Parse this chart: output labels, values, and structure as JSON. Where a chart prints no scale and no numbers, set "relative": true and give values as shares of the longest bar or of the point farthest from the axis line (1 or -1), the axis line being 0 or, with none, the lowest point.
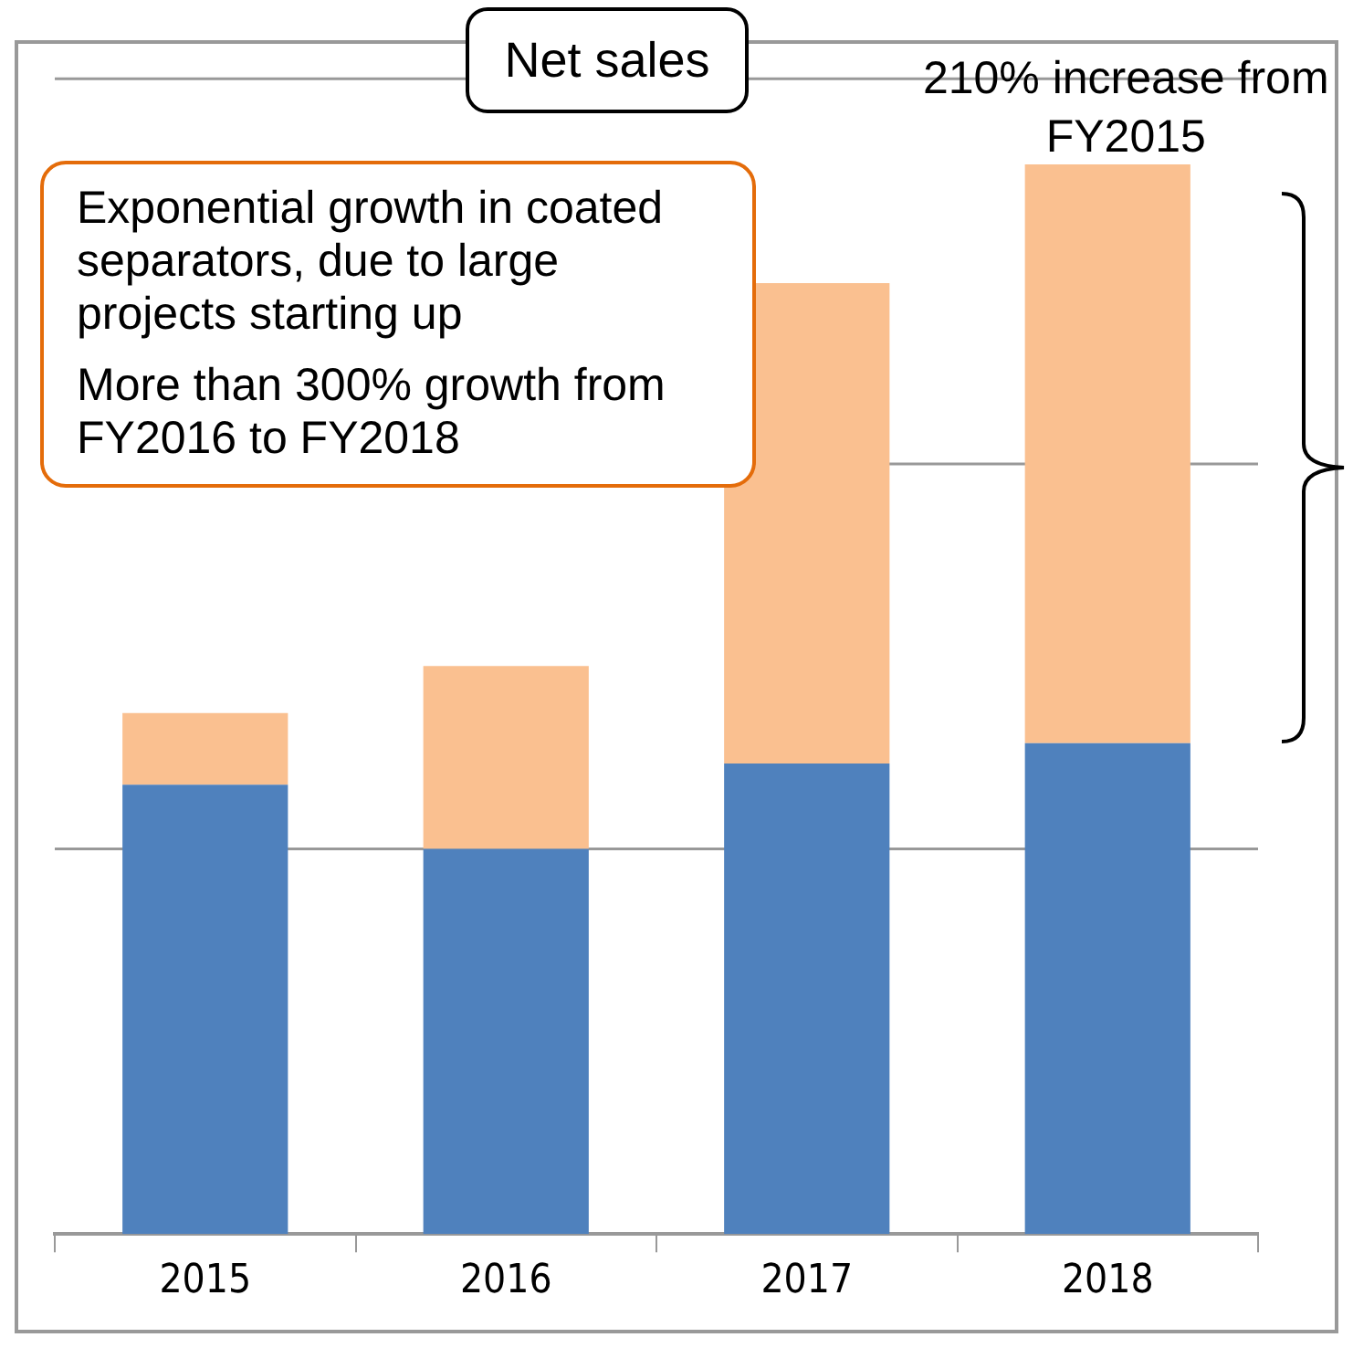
{
  "chart_data": {
    "type": "bar",
    "title": "Net sales",
    "relative": true,
    "stacked": true,
    "ref_lines": [
      {
        "axis": "y",
        "value": 0.36,
        "color": "#999999"
      },
      {
        "axis": "y",
        "value": 0.72,
        "color": "#999999"
      },
      {
        "axis": "y",
        "value": 1.08,
        "color": "#999999"
      }
    ],
    "legend": false,
    "categories": [
      "2015",
      "2016",
      "2017",
      "2018"
    ],
    "series": [
      {
        "color": "#4f81bd",
        "values": [
          0.42,
          0.36,
          0.44,
          0.459
        ]
      },
      {
        "color": "#fac090",
        "values": [
          0.067,
          0.171,
          0.449,
          0.541
        ]
      }
    ],
    "annotations": [
      "Exponential growth in coated separators, due to large projects starting up",
      "More than 300% growth from FY2016 to FY2018",
      {
        "text": "210% increase from FY2015",
        "x": "2018",
        "y": 1
      }
    ]
  }
}
